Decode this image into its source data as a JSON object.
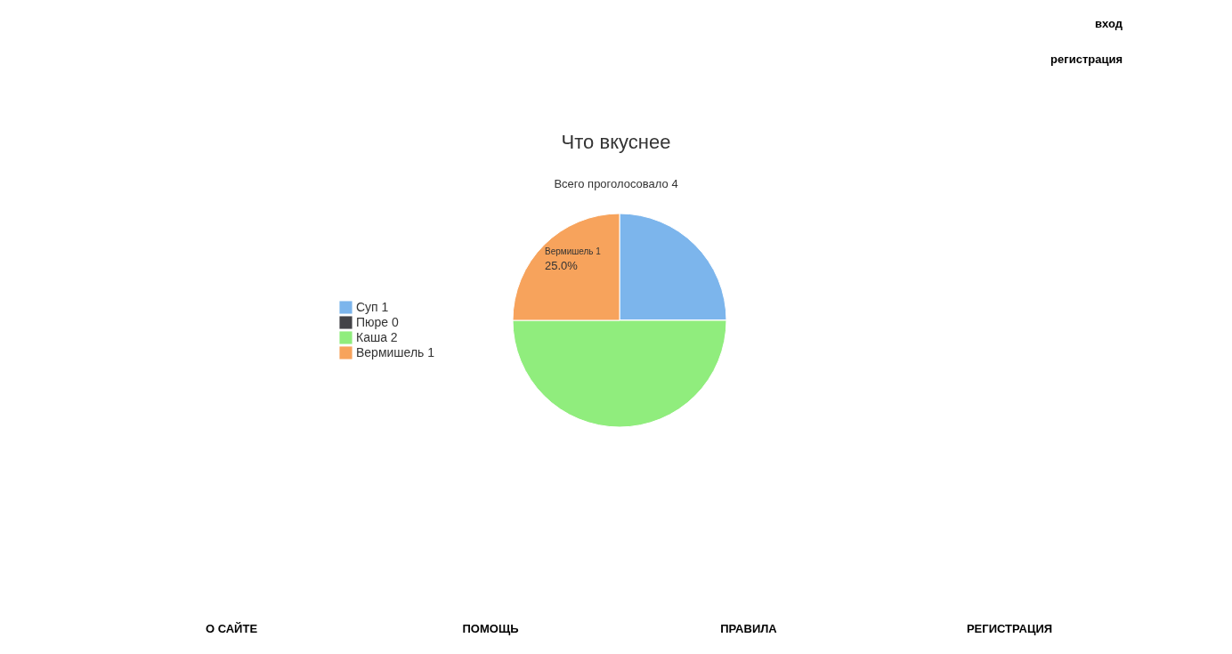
{
  "chart_data": {
    "type": "pie",
    "title": "Что вкуснее",
    "subtitle": "Всего проголосовало 4",
    "categories": [
      "Суп 1",
      "Пюре 0",
      "Каша 2",
      "Вермишель 1"
    ],
    "values": [
      1,
      0,
      2,
      1
    ],
    "colors": [
      "#7cb5ec",
      "#434348",
      "#90ed7d",
      "#f7a35c"
    ],
    "legend": "left",
    "annotations": [
      "вход",
      "регистрация",
      "Вермишель 1",
      "25.0%",
      "О САЙТЕ",
      "ПОМОЩЬ",
      "ПРАВИЛА",
      "РЕГИСТРАЦИЯ"
    ]
  }
}
